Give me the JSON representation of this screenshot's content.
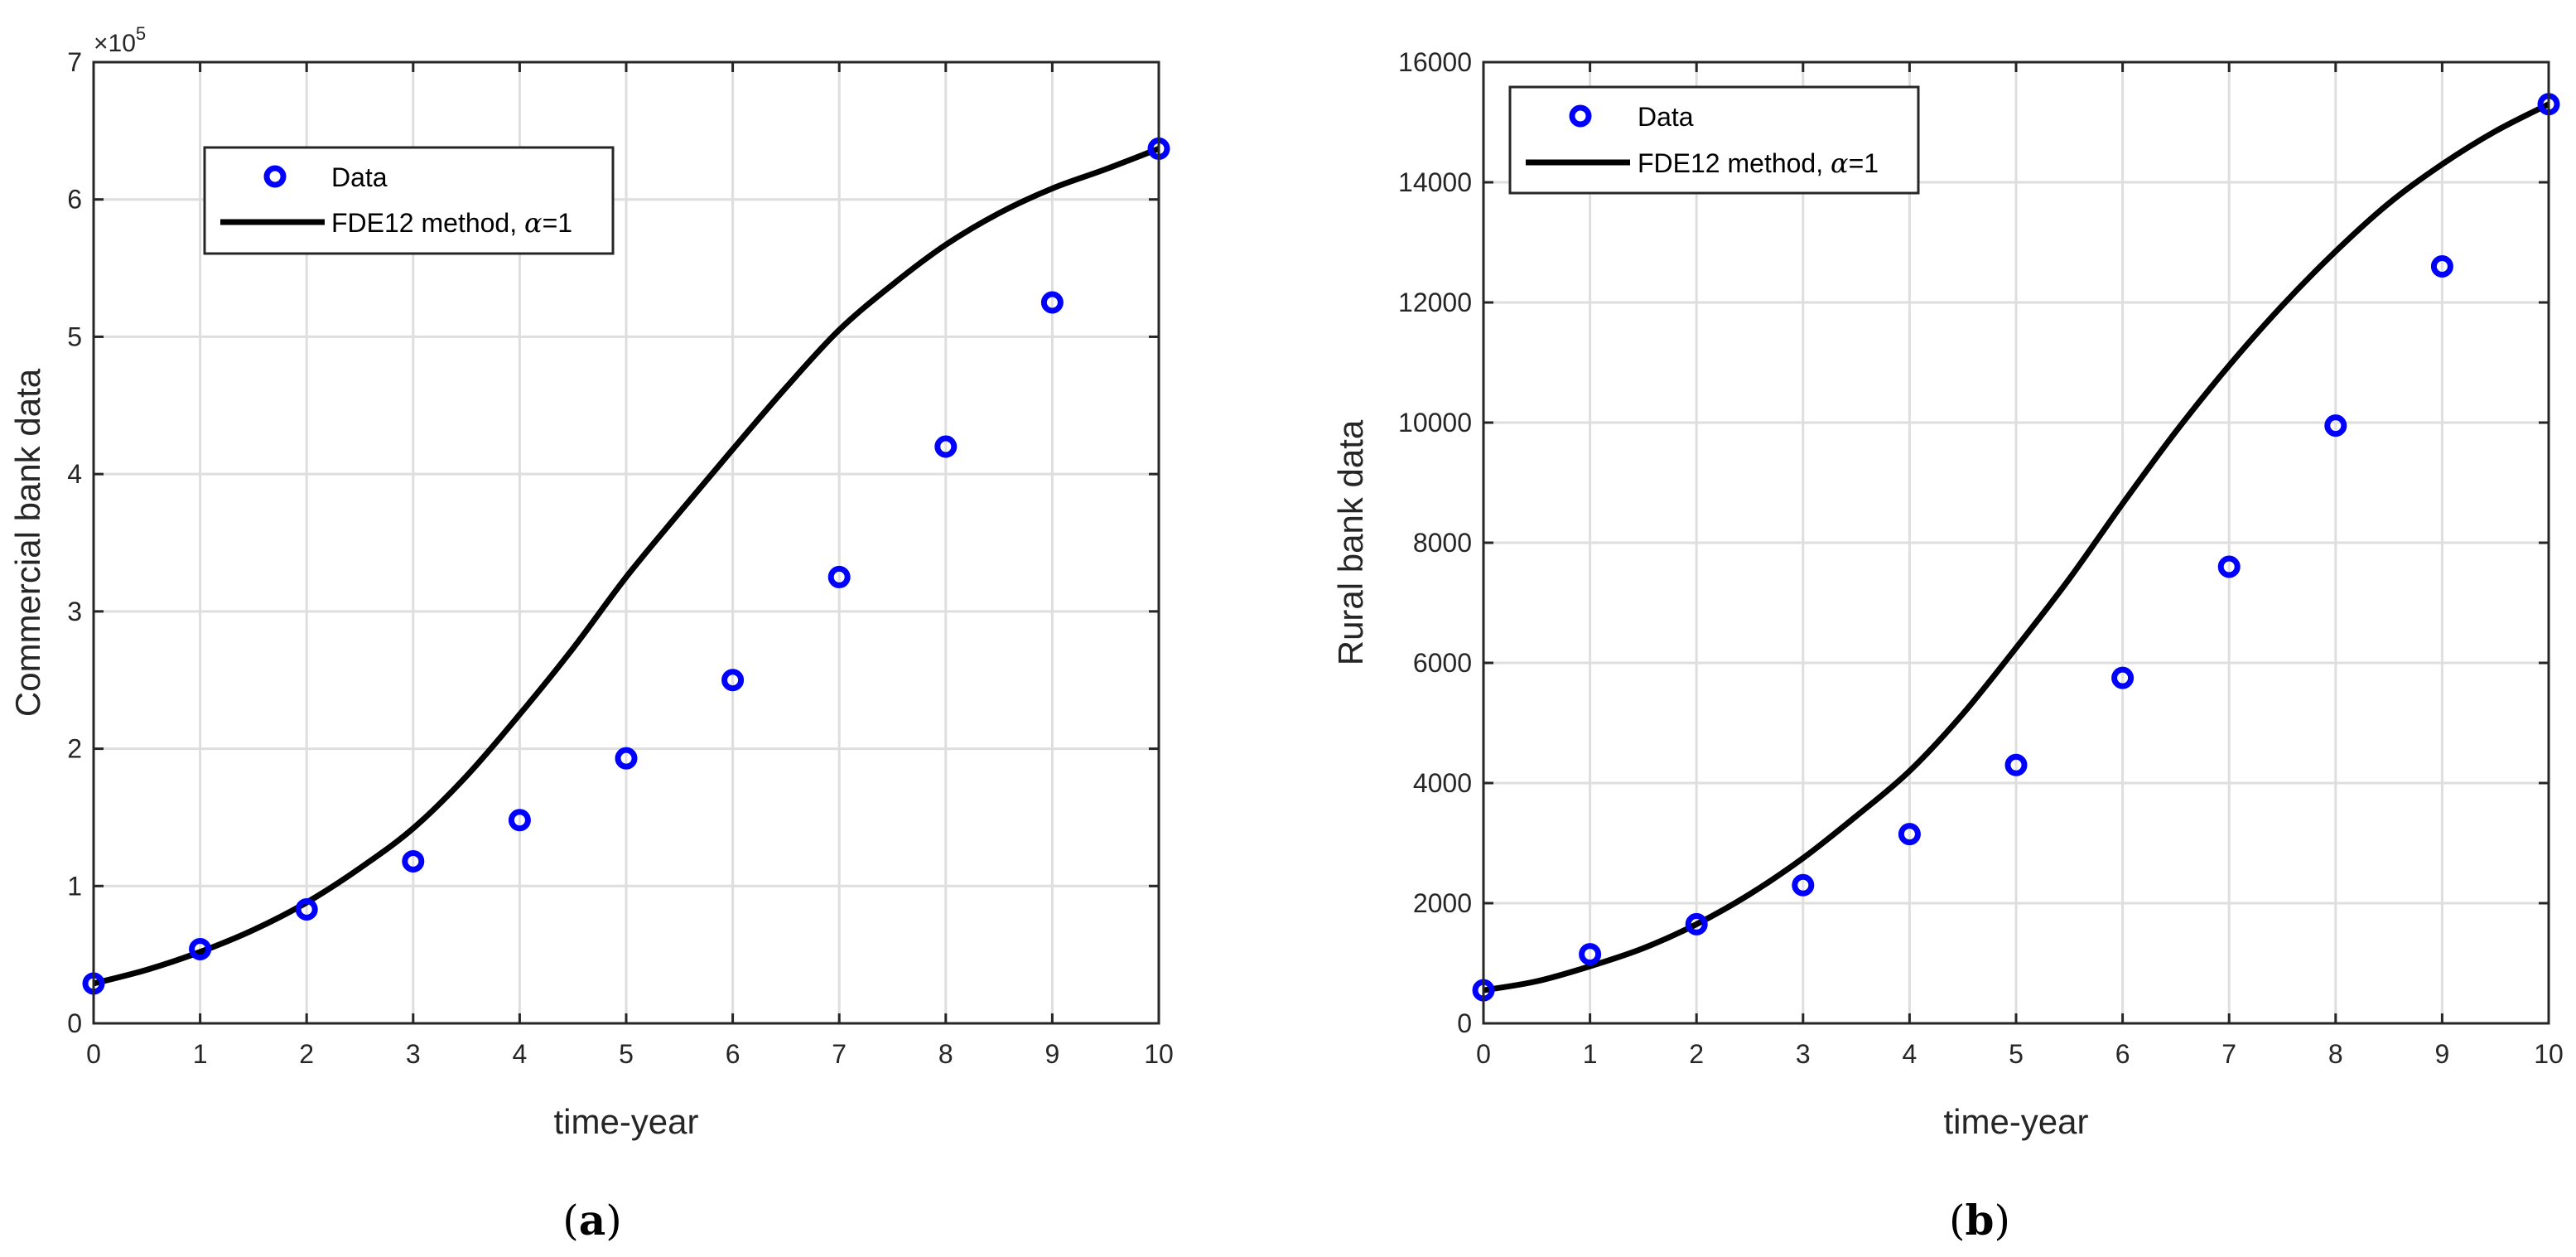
{
  "colors": {
    "data_marker": "#0000ff",
    "model_line": "#000000",
    "grid": "#dedede",
    "axis": "#262626"
  },
  "chart_data": [
    {
      "type": "scatter",
      "panel_label": "a",
      "xlabel": "time-year",
      "ylabel": "Commercial bank data",
      "y_exponent_label": "×10",
      "y_exponent": "5",
      "xlim": [
        0,
        10
      ],
      "ylim": [
        0,
        700000
      ],
      "xticks": [
        0,
        1,
        2,
        3,
        4,
        5,
        6,
        7,
        8,
        9,
        10
      ],
      "yticks": [
        0,
        100000,
        200000,
        300000,
        400000,
        500000,
        600000,
        700000
      ],
      "ytick_labels": [
        "0",
        "1",
        "2",
        "3",
        "4",
        "5",
        "6",
        "7"
      ],
      "grid": true,
      "legend_placement": "upper-left",
      "legend": {
        "data": "Data",
        "model_prefix": "FDE12 method, ",
        "model_symbol": "α",
        "model_suffix": "=1"
      },
      "series": [
        {
          "name": "Data",
          "kind": "markers",
          "x": [
            0,
            1,
            2,
            3,
            4,
            5,
            6,
            7,
            8,
            9,
            10
          ],
          "y": [
            29000,
            54000,
            83000,
            118000,
            148000,
            193000,
            250000,
            325000,
            420000,
            525000,
            637000
          ]
        },
        {
          "name": "FDE12 method, α=1",
          "kind": "line",
          "x": [
            0,
            0.5,
            1,
            1.5,
            2,
            2.5,
            3,
            3.5,
            4,
            4.5,
            5,
            5.5,
            6,
            6.5,
            7,
            7.5,
            8,
            8.5,
            9,
            9.5,
            10
          ],
          "y": [
            29000,
            39000,
            52000,
            68000,
            88000,
            113000,
            142000,
            180000,
            225000,
            273000,
            325000,
            372000,
            418000,
            463000,
            505000,
            538000,
            567000,
            590000,
            608000,
            622000,
            637000
          ]
        }
      ]
    },
    {
      "type": "scatter",
      "panel_label": "b",
      "xlabel": "time-year",
      "ylabel": "Rural bank data",
      "xlim": [
        0,
        10
      ],
      "ylim": [
        0,
        16000
      ],
      "xticks": [
        0,
        1,
        2,
        3,
        4,
        5,
        6,
        7,
        8,
        9,
        10
      ],
      "yticks": [
        0,
        2000,
        4000,
        6000,
        8000,
        10000,
        12000,
        14000,
        16000
      ],
      "ytick_labels": [
        "0",
        "2000",
        "4000",
        "6000",
        "8000",
        "10000",
        "12000",
        "14000",
        "16000"
      ],
      "grid": true,
      "legend_placement": "upper-left",
      "legend": {
        "data": "Data",
        "model_prefix": "FDE12 method, ",
        "model_symbol": "α",
        "model_suffix": "=1"
      },
      "series": [
        {
          "name": "Data",
          "kind": "markers",
          "x": [
            0,
            1,
            2,
            3,
            4,
            5,
            6,
            7,
            8,
            9,
            10
          ],
          "y": [
            550,
            1150,
            1650,
            2300,
            3150,
            4300,
            5750,
            7600,
            9950,
            12600,
            15300
          ]
        },
        {
          "name": "FDE12 method, α=1",
          "kind": "line",
          "x": [
            0,
            0.5,
            1,
            1.5,
            2,
            2.5,
            3,
            3.5,
            4,
            4.5,
            5,
            5.5,
            6,
            6.5,
            7,
            7.5,
            8,
            8.5,
            9,
            9.5,
            10
          ],
          "y": [
            550,
            700,
            950,
            1250,
            1650,
            2150,
            2750,
            3450,
            4200,
            5150,
            6250,
            7400,
            8650,
            9850,
            10950,
            11950,
            12850,
            13650,
            14300,
            14850,
            15300
          ]
        }
      ]
    }
  ]
}
